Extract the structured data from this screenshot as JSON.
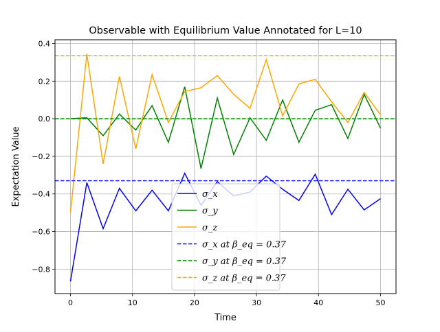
{
  "chart_data": {
    "type": "line",
    "title": "Observable with Equilibrium Value Annotated for L=10",
    "xlabel": "Time",
    "ylabel": "Expectation Value",
    "xlim": [
      -2.5,
      52.5
    ],
    "ylim": [
      -0.93,
      0.42
    ],
    "x_ticks": [
      0,
      10,
      20,
      30,
      40,
      50
    ],
    "y_ticks": [
      -0.8,
      -0.6,
      -0.4,
      -0.2,
      0.0,
      0.2,
      0.4
    ],
    "x_tick_labels": [
      "0",
      "10",
      "20",
      "30",
      "40",
      "50"
    ],
    "y_tick_labels": [
      "−0.8",
      "−0.6",
      "−0.4",
      "−0.2",
      "0.0",
      "0.2",
      "0.4"
    ],
    "grid": true,
    "legend_position": "bottom-center",
    "x": [
      0,
      2.63,
      5.26,
      7.89,
      10.53,
      13.16,
      15.79,
      18.42,
      21.05,
      23.68,
      26.32,
      28.95,
      31.58,
      34.21,
      36.84,
      39.47,
      42.11,
      44.74,
      47.37,
      50
    ],
    "series": [
      {
        "name": "σ_x",
        "color": "#0000ff",
        "style": "solid",
        "values": [
          -0.865,
          -0.34,
          -0.585,
          -0.37,
          -0.49,
          -0.38,
          -0.49,
          -0.29,
          -0.46,
          -0.335,
          -0.41,
          -0.39,
          -0.305,
          -0.375,
          -0.435,
          -0.295,
          -0.51,
          -0.375,
          -0.485,
          -0.425
        ]
      },
      {
        "name": "σ_y",
        "color": "#008000",
        "style": "solid",
        "values": [
          0.0,
          0.005,
          -0.09,
          0.025,
          -0.06,
          0.07,
          -0.125,
          0.17,
          -0.265,
          0.11,
          -0.19,
          0.005,
          -0.115,
          0.1,
          -0.125,
          0.045,
          0.075,
          -0.105,
          0.13,
          -0.05
        ]
      },
      {
        "name": "σ_z",
        "color": "#ffa500",
        "style": "solid",
        "values": [
          -0.5,
          0.345,
          -0.24,
          0.225,
          -0.16,
          0.235,
          -0.02,
          0.145,
          0.165,
          0.23,
          0.13,
          0.055,
          0.315,
          0.015,
          0.185,
          0.21,
          0.09,
          -0.02,
          0.14,
          0.02
        ]
      }
    ],
    "hlines": [
      {
        "name": "σ_x at β_eq = 0.37",
        "value": -0.33,
        "color": "#0000ff",
        "style": "dashed"
      },
      {
        "name": "σ_y at β_eq = 0.37",
        "value": 0.0,
        "color": "#008000",
        "style": "dashed"
      },
      {
        "name": "σ_z at β_eq = 0.37",
        "value": 0.335,
        "color": "#ffa500",
        "style": "dashed"
      }
    ]
  }
}
